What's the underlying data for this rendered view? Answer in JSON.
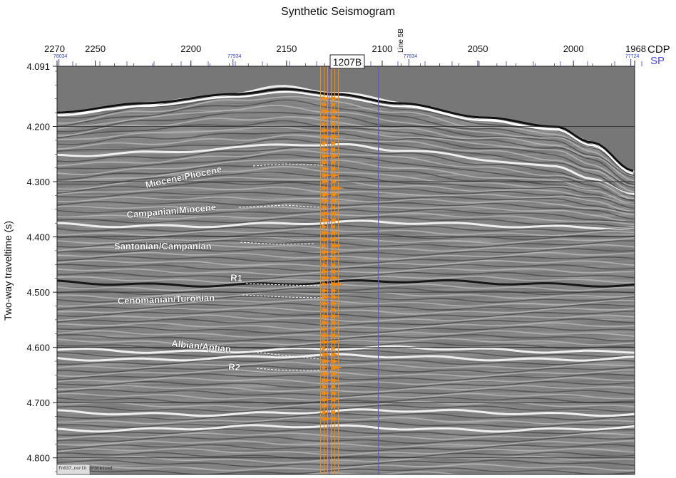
{
  "title": "Synthetic Seismogram",
  "chart_data": {
    "type": "seismic-section",
    "title": "Synthetic Seismogram",
    "xlabel_top": "CDP",
    "xlabel_sp": "SP",
    "ylabel": "Two-way traveltime (s)",
    "x_range_cdp": [
      2270,
      1968
    ],
    "y_range": [
      4.091,
      4.83
    ],
    "cdp_ticks": [
      2270,
      2250,
      2200,
      2150,
      2100,
      2050,
      2000,
      1968
    ],
    "sp_ticks": [
      {
        "label": "78034",
        "cdp": 2269
      },
      {
        "label": "77934",
        "cdp": 2178
      },
      {
        "label": "77834",
        "cdp": 2086
      },
      {
        "label": "77724",
        "cdp": 1970
      }
    ],
    "y_ticks": [
      "4.091",
      "4.200",
      "4.300",
      "4.400",
      "4.500",
      "4.600",
      "4.700",
      "4.800"
    ],
    "y_tick_values": [
      4.091,
      4.2,
      4.3,
      4.4,
      4.5,
      4.6,
      4.7,
      4.8
    ],
    "well": {
      "label": "1207B",
      "cdp": 2127
    },
    "crossing_line": {
      "label": "Line 5B",
      "cdp": 2102
    },
    "horizons": [
      {
        "name": "Miocene/Pliocene",
        "time": 4.275
      },
      {
        "name": "Campanian/Miocene",
        "time": 4.355
      },
      {
        "name": "Santonian/Campanian",
        "time": 4.425
      },
      {
        "name": "R1",
        "time": 4.5
      },
      {
        "name": "Cenomanian/Turonian",
        "time": 4.52
      },
      {
        "name": "Albian/Aptian",
        "time": 4.64
      },
      {
        "name": "R2",
        "time": 4.66
      }
    ],
    "corner_tag": "fn037_north processed",
    "grid": true,
    "colors": {
      "well_traces": "#f08a10",
      "reference_lines": "#5a5ad8",
      "sp_text": "#3344cc"
    }
  }
}
